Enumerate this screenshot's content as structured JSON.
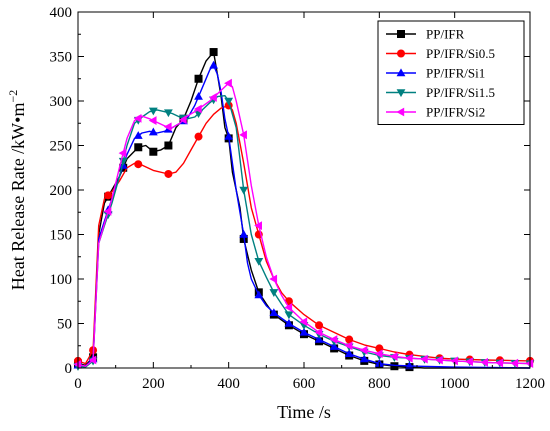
{
  "chart_data": {
    "type": "line",
    "xlabel": "Time /s",
    "ylabel_main": "Heat Release Rate /kW•m",
    "ylabel_sup": "−2",
    "xlim": [
      0,
      1200
    ],
    "ylim": [
      0,
      400
    ],
    "xticks": [
      0,
      200,
      400,
      600,
      800,
      1000,
      1200
    ],
    "yticks": [
      0,
      50,
      100,
      150,
      200,
      250,
      300,
      350,
      400
    ],
    "grid": false,
    "legend_position": "top-right",
    "series": [
      {
        "name": "PP/IFR",
        "color": "#000000",
        "marker": "square",
        "points": [
          [
            0,
            5
          ],
          [
            20,
            3
          ],
          [
            40,
            12
          ],
          [
            55,
            150
          ],
          [
            70,
            185
          ],
          [
            90,
            200
          ],
          [
            110,
            215
          ],
          [
            130,
            235
          ],
          [
            160,
            248
          ],
          [
            180,
            250
          ],
          [
            200,
            243
          ],
          [
            220,
            245
          ],
          [
            240,
            250
          ],
          [
            260,
            270
          ],
          [
            280,
            280
          ],
          [
            300,
            300
          ],
          [
            320,
            325
          ],
          [
            340,
            345
          ],
          [
            360,
            355
          ],
          [
            370,
            330
          ],
          [
            380,
            305
          ],
          [
            390,
            270
          ],
          [
            400,
            258
          ],
          [
            410,
            220
          ],
          [
            430,
            180
          ],
          [
            440,
            145
          ],
          [
            460,
            110
          ],
          [
            480,
            85
          ],
          [
            500,
            72
          ],
          [
            520,
            60
          ],
          [
            560,
            48
          ],
          [
            600,
            38
          ],
          [
            640,
            30
          ],
          [
            680,
            22
          ],
          [
            720,
            14
          ],
          [
            760,
            8
          ],
          [
            800,
            4
          ],
          [
            840,
            2
          ],
          [
            880,
            1
          ],
          [
            920,
            0
          ],
          [
            1000,
            0
          ],
          [
            1100,
            0
          ],
          [
            1200,
            0
          ]
        ],
        "marker_x": [
          0,
          40,
          80,
          120,
          160,
          200,
          240,
          280,
          320,
          360,
          400,
          440,
          480,
          520,
          560,
          600,
          640,
          680,
          720,
          760,
          800,
          840,
          880
        ]
      },
      {
        "name": "PP/IFR/Si0.5",
        "color": "#ff0000",
        "marker": "circle",
        "points": [
          [
            0,
            8
          ],
          [
            20,
            5
          ],
          [
            40,
            20
          ],
          [
            55,
            160
          ],
          [
            70,
            190
          ],
          [
            90,
            198
          ],
          [
            110,
            210
          ],
          [
            130,
            225
          ],
          [
            150,
            230
          ],
          [
            170,
            228
          ],
          [
            200,
            222
          ],
          [
            240,
            218
          ],
          [
            260,
            220
          ],
          [
            280,
            230
          ],
          [
            300,
            245
          ],
          [
            320,
            260
          ],
          [
            340,
            275
          ],
          [
            360,
            285
          ],
          [
            380,
            292
          ],
          [
            400,
            295
          ],
          [
            410,
            290
          ],
          [
            420,
            275
          ],
          [
            440,
            230
          ],
          [
            460,
            180
          ],
          [
            480,
            150
          ],
          [
            500,
            120
          ],
          [
            520,
            100
          ],
          [
            540,
            85
          ],
          [
            560,
            75
          ],
          [
            600,
            60
          ],
          [
            640,
            48
          ],
          [
            680,
            40
          ],
          [
            720,
            32
          ],
          [
            760,
            26
          ],
          [
            800,
            22
          ],
          [
            840,
            18
          ],
          [
            880,
            15
          ],
          [
            920,
            13
          ],
          [
            960,
            11
          ],
          [
            1000,
            10
          ],
          [
            1080,
            9
          ],
          [
            1200,
            8
          ]
        ],
        "marker_x": [
          0,
          40,
          80,
          160,
          240,
          320,
          400,
          480,
          560,
          640,
          720,
          800,
          880,
          960,
          1040,
          1120,
          1200
        ]
      },
      {
        "name": "PP/IFR/Si1",
        "color": "#0000ff",
        "marker": "triangle-up",
        "points": [
          [
            0,
            3
          ],
          [
            20,
            2
          ],
          [
            40,
            10
          ],
          [
            55,
            145
          ],
          [
            70,
            165
          ],
          [
            90,
            190
          ],
          [
            110,
            215
          ],
          [
            130,
            240
          ],
          [
            150,
            258
          ],
          [
            170,
            264
          ],
          [
            190,
            266
          ],
          [
            210,
            264
          ],
          [
            230,
            266
          ],
          [
            250,
            270
          ],
          [
            270,
            275
          ],
          [
            290,
            280
          ],
          [
            310,
            295
          ],
          [
            330,
            315
          ],
          [
            350,
            335
          ],
          [
            360,
            340
          ],
          [
            370,
            330
          ],
          [
            380,
            310
          ],
          [
            390,
            280
          ],
          [
            400,
            260
          ],
          [
            420,
            200
          ],
          [
            440,
            150
          ],
          [
            450,
            118
          ],
          [
            460,
            100
          ],
          [
            480,
            82
          ],
          [
            500,
            70
          ],
          [
            520,
            62
          ],
          [
            560,
            50
          ],
          [
            600,
            40
          ],
          [
            640,
            32
          ],
          [
            680,
            24
          ],
          [
            720,
            16
          ],
          [
            760,
            10
          ],
          [
            800,
            5
          ],
          [
            840,
            3
          ],
          [
            900,
            2
          ],
          [
            1000,
            1
          ],
          [
            1200,
            0
          ]
        ],
        "marker_x": [
          0,
          40,
          80,
          120,
          160,
          200,
          240,
          280,
          320,
          360,
          400,
          440,
          480,
          520,
          560,
          600,
          640,
          680,
          720,
          760,
          800,
          880
        ]
      },
      {
        "name": "PP/IFR/Si1.5",
        "color": "#008080",
        "marker": "triangle-down",
        "points": [
          [
            0,
            2
          ],
          [
            20,
            1
          ],
          [
            40,
            8
          ],
          [
            55,
            140
          ],
          [
            70,
            160
          ],
          [
            90,
            185
          ],
          [
            110,
            215
          ],
          [
            130,
            250
          ],
          [
            150,
            275
          ],
          [
            170,
            282
          ],
          [
            190,
            288
          ],
          [
            210,
            290
          ],
          [
            230,
            288
          ],
          [
            250,
            286
          ],
          [
            270,
            282
          ],
          [
            290,
            280
          ],
          [
            310,
            282
          ],
          [
            330,
            290
          ],
          [
            350,
            298
          ],
          [
            370,
            305
          ],
          [
            390,
            306
          ],
          [
            400,
            300
          ],
          [
            420,
            270
          ],
          [
            440,
            200
          ],
          [
            460,
            150
          ],
          [
            480,
            120
          ],
          [
            500,
            102
          ],
          [
            520,
            85
          ],
          [
            540,
            72
          ],
          [
            560,
            60
          ],
          [
            600,
            48
          ],
          [
            640,
            38
          ],
          [
            680,
            30
          ],
          [
            720,
            24
          ],
          [
            760,
            18
          ],
          [
            800,
            14
          ],
          [
            840,
            12
          ],
          [
            880,
            11
          ],
          [
            920,
            10
          ],
          [
            960,
            9
          ],
          [
            1000,
            8
          ],
          [
            1100,
            6
          ],
          [
            1200,
            5
          ]
        ],
        "marker_x": [
          0,
          40,
          80,
          120,
          160,
          200,
          240,
          280,
          320,
          360,
          400,
          440,
          480,
          520,
          560,
          600,
          640,
          680,
          720,
          760,
          800,
          840,
          880,
          920,
          960,
          1000,
          1040,
          1080,
          1120,
          1160,
          1200
        ]
      },
      {
        "name": "PP/IFR/Si2",
        "color": "#ff00ff",
        "marker": "triangle-left",
        "points": [
          [
            0,
            4
          ],
          [
            20,
            2
          ],
          [
            40,
            9
          ],
          [
            55,
            140
          ],
          [
            70,
            162
          ],
          [
            90,
            190
          ],
          [
            110,
            225
          ],
          [
            130,
            258
          ],
          [
            150,
            278
          ],
          [
            170,
            283
          ],
          [
            190,
            280
          ],
          [
            210,
            276
          ],
          [
            230,
            272
          ],
          [
            250,
            270
          ],
          [
            270,
            275
          ],
          [
            290,
            283
          ],
          [
            310,
            288
          ],
          [
            330,
            294
          ],
          [
            350,
            300
          ],
          [
            370,
            308
          ],
          [
            390,
            316
          ],
          [
            400,
            320
          ],
          [
            410,
            316
          ],
          [
            420,
            300
          ],
          [
            440,
            262
          ],
          [
            460,
            205
          ],
          [
            480,
            160
          ],
          [
            500,
            125
          ],
          [
            520,
            100
          ],
          [
            540,
            82
          ],
          [
            560,
            68
          ],
          [
            600,
            52
          ],
          [
            640,
            40
          ],
          [
            680,
            32
          ],
          [
            720,
            25
          ],
          [
            760,
            20
          ],
          [
            800,
            16
          ],
          [
            840,
            13
          ],
          [
            880,
            11
          ],
          [
            920,
            10
          ],
          [
            960,
            9
          ],
          [
            1000,
            8
          ],
          [
            1100,
            6
          ],
          [
            1200,
            5
          ]
        ],
        "marker_x": [
          0,
          40,
          80,
          120,
          160,
          200,
          240,
          280,
          320,
          360,
          400,
          440,
          480,
          520,
          560,
          600,
          640,
          680,
          720,
          760,
          800,
          840,
          880,
          920,
          960,
          1000,
          1040,
          1080,
          1120,
          1160,
          1200
        ]
      }
    ]
  }
}
